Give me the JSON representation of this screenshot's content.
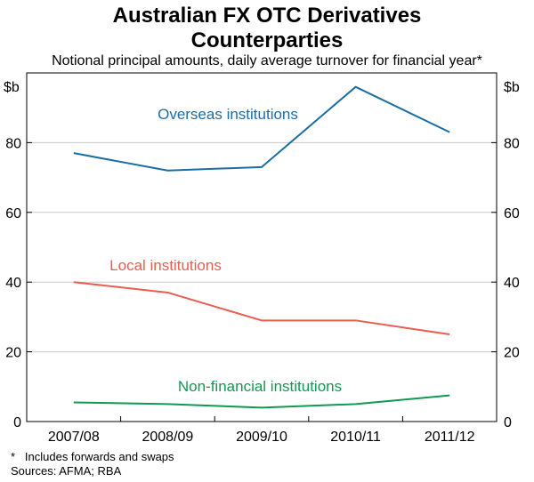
{
  "chart_data": {
    "type": "line",
    "title": "Australian FX OTC Derivatives Counterparties",
    "title_lines": [
      "Australian FX OTC Derivatives",
      "Counterparties"
    ],
    "subtitle": "Notional principal amounts, daily average turnover for financial year*",
    "y_unit_left": "$b",
    "y_unit_right": "$b",
    "ylim": [
      0,
      100
    ],
    "yticks": [
      0,
      20,
      40,
      60,
      80
    ],
    "grid": true,
    "categories": [
      "2007/08",
      "2008/09",
      "2009/10",
      "2010/11",
      "2011/12"
    ],
    "series": [
      {
        "name": "Overseas institutions",
        "color": "#1a6ea3",
        "values": [
          77,
          72,
          73,
          96,
          83
        ]
      },
      {
        "name": "Local institutions",
        "color": "#ea5b50",
        "values": [
          40,
          37,
          29,
          29,
          25
        ]
      },
      {
        "name": "Non-financial institutions",
        "color": "#0f9a52",
        "values": [
          5.5,
          5,
          4,
          5,
          7.5
        ]
      }
    ],
    "footnote": "*   Includes forwards and swaps",
    "source": "Sources: AFMA; RBA"
  }
}
